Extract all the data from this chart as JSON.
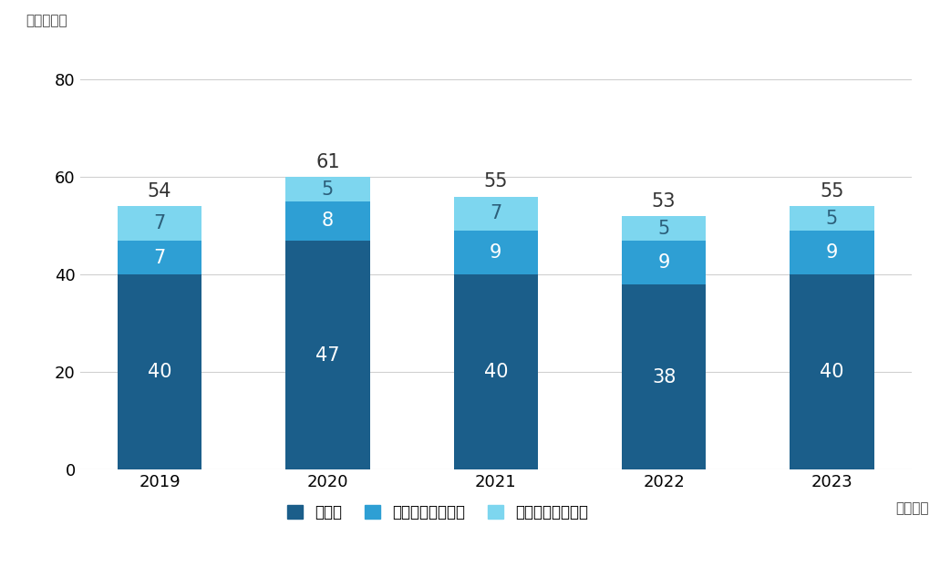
{
  "years": [
    "2019",
    "2020",
    "2021",
    "2022",
    "2023"
  ],
  "kaneka": [
    40,
    47,
    40,
    38,
    40
  ],
  "domestic": [
    7,
    8,
    9,
    9,
    9
  ],
  "overseas": [
    7,
    5,
    7,
    5,
    5
  ],
  "totals": [
    54,
    61,
    55,
    53,
    55
  ],
  "colors": {
    "kaneka": "#1b5e8a",
    "domestic": "#2e9fd4",
    "overseas": "#7dd6ef"
  },
  "ylabel": "（千トン）",
  "xlabel_suffix": "（年度）",
  "legend_labels": [
    "カネカ",
    "国内グループ会社",
    "海外グループ会社"
  ],
  "yticks": [
    0,
    20,
    40,
    60,
    80
  ],
  "ylim": [
    0,
    88
  ],
  "bar_width": 0.5,
  "background_color": "#ffffff"
}
